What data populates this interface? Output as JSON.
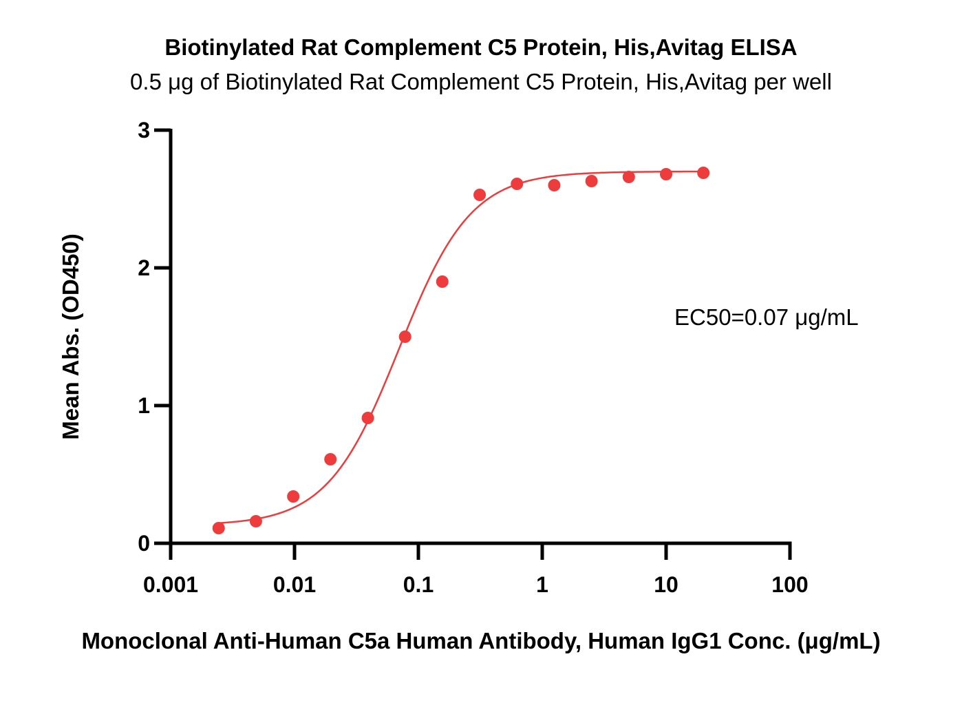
{
  "chart_data": {
    "type": "scatter",
    "title": "Biotinylated Rat Complement C5 Protein, His,Avitag ELISA",
    "subtitle": "0.5 μg of Biotinylated Rat Complement C5 Protein, His,Avitag per well",
    "xlabel": "Monoclonal Anti-Human C5a Human Antibody, Human IgG1 Conc. (μg/mL)",
    "ylabel": "Mean Abs. (OD450)",
    "x_scale": "log",
    "xlim": [
      0.001,
      100
    ],
    "ylim": [
      0,
      3
    ],
    "x_ticks": [
      0.001,
      0.01,
      0.1,
      1,
      10,
      100
    ],
    "x_tick_labels": [
      "0.001",
      "0.01",
      "0.1",
      "1",
      "10",
      "100"
    ],
    "y_ticks": [
      0,
      1,
      2,
      3
    ],
    "y_tick_labels": [
      "0",
      "1",
      "2",
      "3"
    ],
    "grid": false,
    "color": "#ee3b3b",
    "annotation": "EC50=0.07 μg/mL",
    "series": [
      {
        "x": [
          0.00244,
          0.00488,
          0.00977,
          0.0195,
          0.0391,
          0.0781,
          0.156,
          0.3125,
          0.625,
          1.25,
          2.5,
          5,
          10,
          20
        ],
        "y": [
          0.11,
          0.16,
          0.34,
          0.61,
          0.91,
          1.5,
          1.9,
          2.53,
          2.61,
          2.6,
          2.63,
          2.66,
          2.68,
          2.69
        ],
        "fit": {
          "bottom": 0.13,
          "top": 2.7,
          "ec50": 0.07,
          "hill": 1.5
        }
      }
    ]
  }
}
